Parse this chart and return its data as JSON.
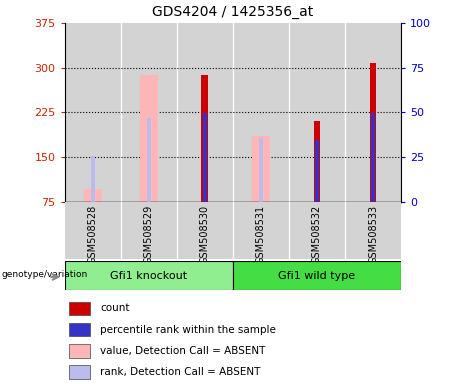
{
  "title": "GDS4204 / 1425356_at",
  "samples": [
    "GSM508528",
    "GSM508529",
    "GSM508530",
    "GSM508531",
    "GSM508532",
    "GSM508533"
  ],
  "ylim_left": [
    75,
    375
  ],
  "ylim_right": [
    0,
    100
  ],
  "yticks_left": [
    75,
    150,
    225,
    300,
    375
  ],
  "yticks_right": [
    0,
    25,
    50,
    75,
    100
  ],
  "left_color": "#CC2200",
  "right_color": "#0000CC",
  "bar_bottom": 75,
  "count_values": [
    null,
    null,
    287,
    null,
    210,
    308
  ],
  "rank_values": [
    null,
    null,
    224,
    null,
    178,
    224
  ],
  "absent_value_values": [
    97,
    287,
    null,
    185,
    null,
    null
  ],
  "absent_rank_values": [
    152,
    215,
    null,
    182,
    null,
    null
  ],
  "count_color": "#CC0000",
  "rank_color": "#3333CC",
  "absent_value_color": "#FFB6B6",
  "absent_rank_color": "#BBBBEE",
  "cell_bg_color": "#D3D3D3",
  "group1_color": "#90EE90",
  "group2_color": "#44DD44",
  "legend_items": [
    "count",
    "percentile rank within the sample",
    "value, Detection Call = ABSENT",
    "rank, Detection Call = ABSENT"
  ],
  "legend_colors": [
    "#CC0000",
    "#3333CC",
    "#FFB6B6",
    "#BBBBEE"
  ],
  "grid_yticks": [
    150,
    225,
    300
  ]
}
